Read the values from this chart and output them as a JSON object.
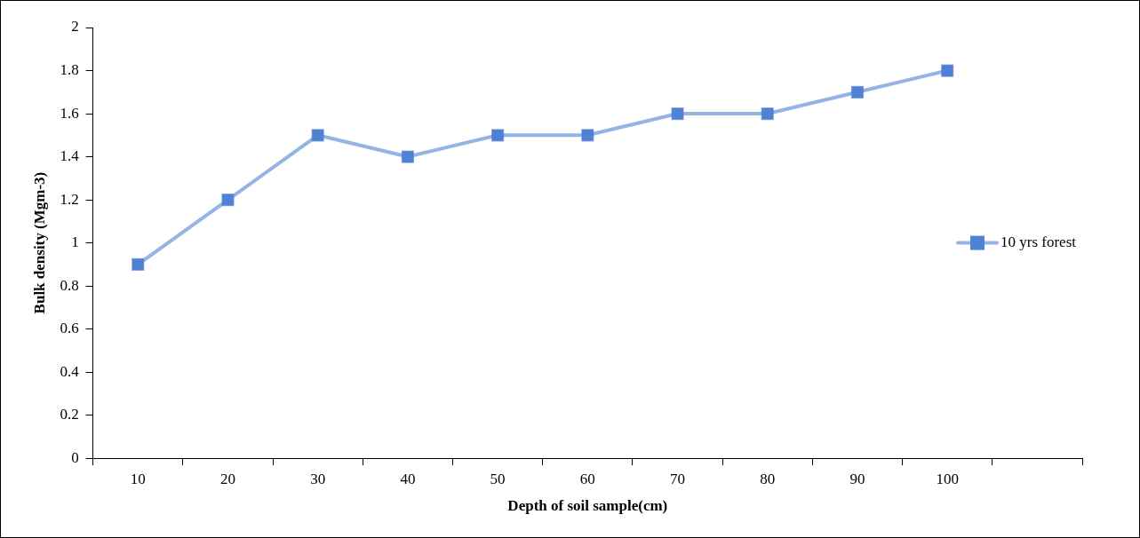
{
  "chart_data": {
    "type": "line",
    "xlabel": "Depth of soil sample(cm)",
    "ylabel": "Bulk density (Mgm-3)",
    "categories": [
      "10",
      "20",
      "30",
      "40",
      "50",
      "60",
      "70",
      "80",
      "90",
      "100",
      null
    ],
    "series": [
      {
        "name": "10 yrs forest",
        "color": "#4f81d4",
        "values": [
          0.9,
          1.2,
          1.5,
          1.4,
          1.5,
          1.5,
          1.6,
          1.6,
          1.7,
          1.8,
          null
        ]
      }
    ],
    "ylim": [
      0,
      2
    ],
    "yticks": [
      0,
      0.2,
      0.4,
      0.6,
      0.8,
      1,
      1.2,
      1.4,
      1.6,
      1.8,
      2
    ],
    "grid": false,
    "legend": "right",
    "marker": "square",
    "line_style": "solid"
  }
}
